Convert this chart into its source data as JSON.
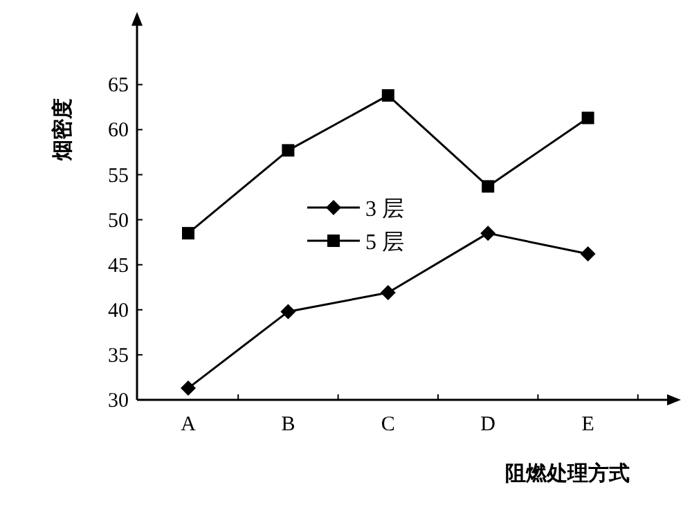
{
  "chart_data": {
    "type": "line",
    "ylabel": "烟密度",
    "xlabel": "阻燃处理方式",
    "categories": [
      "A",
      "B",
      "C",
      "D",
      "E"
    ],
    "series": [
      {
        "name": "3 层",
        "color": "#000000",
        "marker": "diamond",
        "values": [
          31.3,
          39.8,
          41.9,
          48.5,
          46.2
        ]
      },
      {
        "name": "5 层",
        "color": "#000000",
        "marker": "square",
        "values": [
          48.5,
          57.7,
          63.8,
          53.7,
          61.3
        ]
      }
    ],
    "ylim": [
      30,
      72
    ],
    "yticks": [
      30,
      35,
      40,
      45,
      50,
      55,
      60,
      65
    ],
    "grid": false,
    "legend": "center",
    "line_style": "solid"
  }
}
